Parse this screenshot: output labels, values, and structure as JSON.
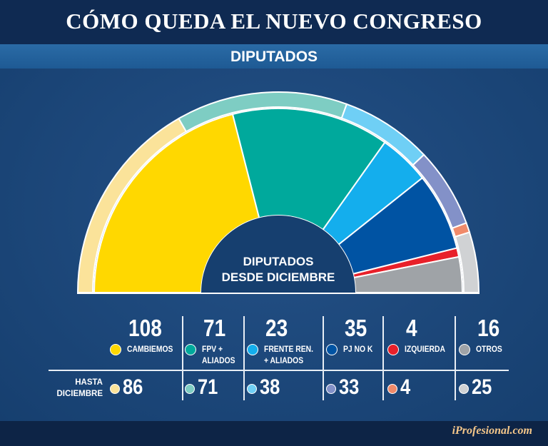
{
  "header": {
    "title": "CÓMO QUEDA EL NUEVO CONGRESO",
    "subtitle": "DIPUTADOS"
  },
  "chart_data": {
    "type": "pie",
    "subtype": "half-donut parliament chart",
    "center_label": [
      "DIPUTADOS",
      "DESDE DICIEMBRE"
    ],
    "previous_label": [
      "HASTA",
      "DICIEMBRE"
    ],
    "series": [
      {
        "name": "CAMBIEMOS",
        "label_lines": [
          "CAMBIEMOS"
        ],
        "from_december": 108,
        "until_december": 86,
        "color": "#ffd800",
        "color_prev": "#fbe39a"
      },
      {
        "name": "FPV + ALIADOS",
        "label_lines": [
          "FPV +",
          "ALIADOS"
        ],
        "from_december": 71,
        "until_december": 71,
        "color": "#00a99c",
        "color_prev": "#7ecdc3"
      },
      {
        "name": "FRENTE REN. + ALIADOS",
        "label_lines": [
          "FRENTE REN.",
          "+ ALIADOS"
        ],
        "from_december": 23,
        "until_december": 38,
        "color": "#14aeed",
        "color_prev": "#6fcff5"
      },
      {
        "name": "PJ NO K",
        "label_lines": [
          "PJ NO K"
        ],
        "from_december": 35,
        "until_december": 33,
        "color": "#0053a3",
        "color_prev": "#8391c8"
      },
      {
        "name": "IZQUIERDA",
        "label_lines": [
          "IZQUIERDA"
        ],
        "from_december": 4,
        "until_december": 4,
        "color": "#e8202a",
        "color_prev": "#f08a6a"
      },
      {
        "name": "OTROS",
        "label_lines": [
          "OTROS"
        ],
        "from_december": 16,
        "until_december": 25,
        "color": "#9fa3a7",
        "color_prev": "#d0d2d4"
      }
    ]
  },
  "footer": {
    "brand": "iProfesional.com"
  }
}
